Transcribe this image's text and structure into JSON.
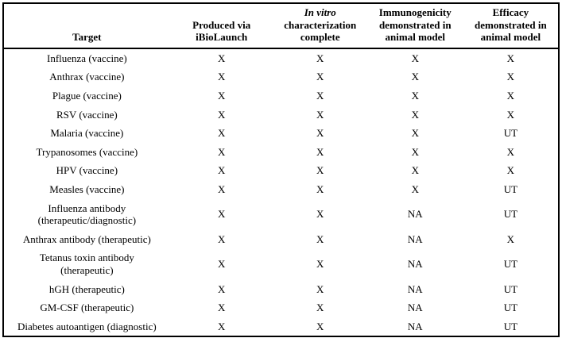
{
  "colors": {
    "border": "#000000",
    "text": "#000000",
    "background": "#ffffff"
  },
  "table": {
    "columns": {
      "target": "Target",
      "produced": "Produced via\niBioLaunch",
      "invitro_italic": "In vitro",
      "invitro_rest": "characterization\ncomplete",
      "immunogenicity": "Immunogenicity\ndemonstrated in\nanimal model",
      "efficacy": "Efficacy\ndemonstrated in\nanimal model"
    },
    "rows": [
      {
        "target": "Influenza (vaccine)",
        "produced": "X",
        "invitro": "X",
        "immunogenicity": "X",
        "efficacy": "X"
      },
      {
        "target": "Anthrax (vaccine)",
        "produced": "X",
        "invitro": "X",
        "immunogenicity": "X",
        "efficacy": "X"
      },
      {
        "target": "Plague (vaccine)",
        "produced": "X",
        "invitro": "X",
        "immunogenicity": "X",
        "efficacy": "X"
      },
      {
        "target": "RSV (vaccine)",
        "produced": "X",
        "invitro": "X",
        "immunogenicity": "X",
        "efficacy": "X"
      },
      {
        "target": "Malaria (vaccine)",
        "produced": "X",
        "invitro": "X",
        "immunogenicity": "X",
        "efficacy": "UT"
      },
      {
        "target": "Trypanosomes (vaccine)",
        "produced": "X",
        "invitro": "X",
        "immunogenicity": "X",
        "efficacy": "X"
      },
      {
        "target": "HPV (vaccine)",
        "produced": "X",
        "invitro": "X",
        "immunogenicity": "X",
        "efficacy": "X"
      },
      {
        "target": "Measles (vaccine)",
        "produced": "X",
        "invitro": "X",
        "immunogenicity": "X",
        "efficacy": "UT"
      },
      {
        "target": "Influenza antibody\n(therapeutic/diagnostic)",
        "produced": "X",
        "invitro": "X",
        "immunogenicity": "NA",
        "efficacy": "UT"
      },
      {
        "target": "Anthrax antibody (therapeutic)",
        "produced": "X",
        "invitro": "X",
        "immunogenicity": "NA",
        "efficacy": "X"
      },
      {
        "target": "Tetanus toxin antibody\n(therapeutic)",
        "produced": "X",
        "invitro": "X",
        "immunogenicity": "NA",
        "efficacy": "UT"
      },
      {
        "target": "hGH (therapeutic)",
        "produced": "X",
        "invitro": "X",
        "immunogenicity": "NA",
        "efficacy": "UT"
      },
      {
        "target": "GM-CSF (therapeutic)",
        "produced": "X",
        "invitro": "X",
        "immunogenicity": "NA",
        "efficacy": "UT"
      },
      {
        "target": "Diabetes autoantigen (diagnostic)",
        "produced": "X",
        "invitro": "X",
        "immunogenicity": "NA",
        "efficacy": "UT"
      }
    ]
  }
}
